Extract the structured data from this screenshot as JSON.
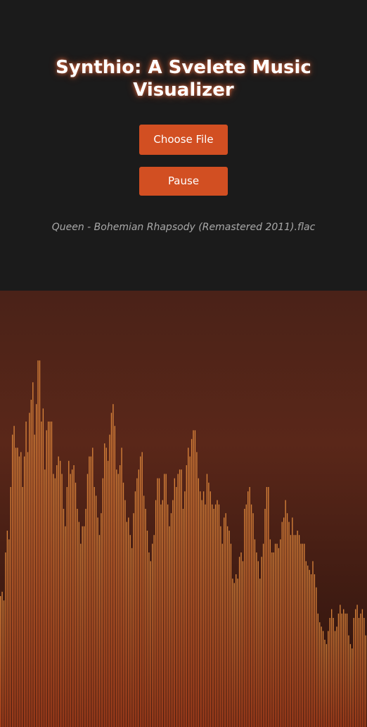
{
  "app": {
    "title": "Synthio: A Svelete Music Visualizer"
  },
  "controls": {
    "choose_file_label": "Choose File",
    "pause_label": "Pause"
  },
  "track": {
    "filename": "Queen - Bohemian Rhapsody (Remastered 2011).flac"
  },
  "colors": {
    "accent": "#d24f22",
    "background": "#1b1b1b",
    "bar_top": "#d9843a",
    "bar_bottom": "#c4481e"
  },
  "visualizer": {
    "bar_levels": [
      0.3,
      0.31,
      0.29,
      0.4,
      0.45,
      0.43,
      0.55,
      0.67,
      0.69,
      0.64,
      0.64,
      0.62,
      0.63,
      0.55,
      0.62,
      0.7,
      0.63,
      0.72,
      0.75,
      0.79,
      0.67,
      0.74,
      0.84,
      0.84,
      0.7,
      0.73,
      0.59,
      0.68,
      0.7,
      0.7,
      0.7,
      0.58,
      0.57,
      0.6,
      0.62,
      0.61,
      0.58,
      0.5,
      0.46,
      0.55,
      0.61,
      0.58,
      0.59,
      0.6,
      0.56,
      0.5,
      0.47,
      0.42,
      0.46,
      0.46,
      0.5,
      0.58,
      0.62,
      0.62,
      0.64,
      0.55,
      0.53,
      0.48,
      0.44,
      0.49,
      0.57,
      0.65,
      0.64,
      0.61,
      0.67,
      0.72,
      0.74,
      0.69,
      0.59,
      0.58,
      0.6,
      0.64,
      0.56,
      0.52,
      0.47,
      0.48,
      0.44,
      0.41,
      0.49,
      0.54,
      0.57,
      0.59,
      0.62,
      0.63,
      0.53,
      0.5,
      0.45,
      0.4,
      0.38,
      0.42,
      0.44,
      0.52,
      0.57,
      0.57,
      0.51,
      0.52,
      0.58,
      0.58,
      0.51,
      0.46,
      0.49,
      0.52,
      0.57,
      0.55,
      0.58,
      0.59,
      0.59,
      0.5,
      0.54,
      0.6,
      0.64,
      0.62,
      0.66,
      0.68,
      0.68,
      0.63,
      0.57,
      0.54,
      0.52,
      0.54,
      0.51,
      0.58,
      0.56,
      0.54,
      0.51,
      0.5,
      0.51,
      0.52,
      0.51,
      0.46,
      0.42,
      0.48,
      0.49,
      0.46,
      0.45,
      0.42,
      0.34,
      0.33,
      0.35,
      0.34,
      0.39,
      0.4,
      0.38,
      0.5,
      0.51,
      0.54,
      0.55,
      0.51,
      0.49,
      0.43,
      0.4,
      0.38,
      0.34,
      0.39,
      0.42,
      0.5,
      0.55,
      0.55,
      0.43,
      0.4,
      0.4,
      0.42,
      0.42,
      0.41,
      0.43,
      0.47,
      0.48,
      0.52,
      0.49,
      0.47,
      0.44,
      0.48,
      0.44,
      0.44,
      0.45,
      0.44,
      0.42,
      0.42,
      0.42,
      0.38,
      0.37,
      0.36,
      0.35,
      0.38,
      0.35,
      0.32,
      0.26,
      0.24,
      0.23,
      0.22,
      0.2,
      0.19,
      0.22,
      0.25,
      0.27,
      0.25,
      0.22,
      0.23,
      0.26,
      0.28,
      0.26,
      0.27,
      0.26,
      0.26,
      0.21,
      0.19,
      0.18,
      0.25,
      0.27,
      0.28,
      0.25,
      0.26,
      0.27,
      0.25,
      0.21
    ]
  }
}
